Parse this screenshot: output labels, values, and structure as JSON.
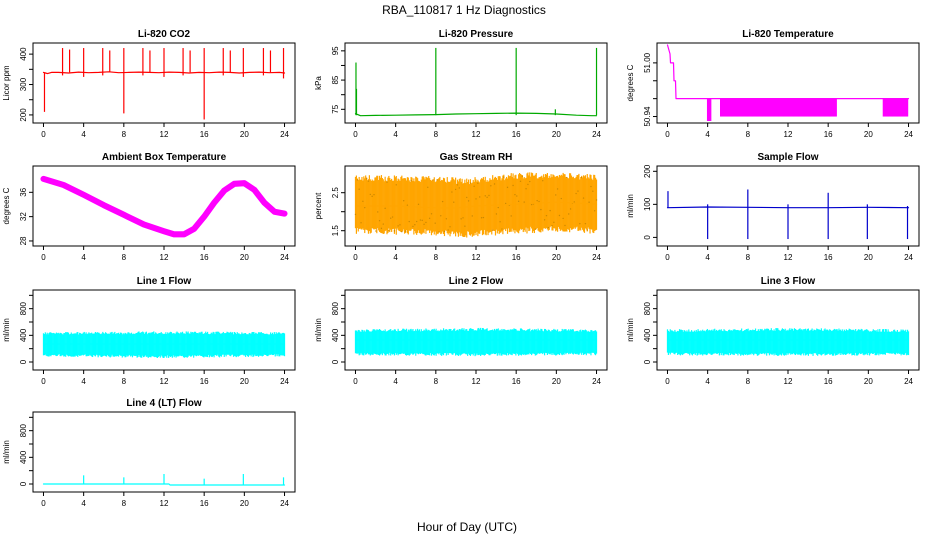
{
  "page": {
    "title": "RBA_110817  1 Hz Diagnostics",
    "xlabel": "Hour of Day (UTC)"
  },
  "chart_data": [
    {
      "id": "co2",
      "type": "line",
      "title": "Li-820 CO2",
      "ylabel": "Licor ppm",
      "color": "#ff0000",
      "xlim": [
        0,
        24
      ],
      "ylim": [
        180,
        430
      ],
      "xticks": [
        0,
        4,
        8,
        12,
        16,
        20,
        24
      ],
      "yticks": [
        200,
        250,
        300,
        350,
        400
      ],
      "ytick_labels": [
        "200",
        "",
        "300",
        "",
        "400"
      ],
      "series": [
        {
          "name": "CO2",
          "x": [
            0,
            0.2,
            0.4,
            0.8,
            1.5,
            2.5,
            3.5,
            4.5,
            5.5,
            6.5,
            7.5,
            8.5,
            9.5,
            10.5,
            11.5,
            12.5,
            13.5,
            14.5,
            15.5,
            16.5,
            17.5,
            18.5,
            19.5,
            20.5,
            21.5,
            22.5,
            23.5,
            24
          ],
          "values": [
            340,
            338,
            336,
            340,
            340,
            338,
            341,
            339,
            340,
            342,
            339,
            340,
            341,
            340,
            339,
            341,
            340,
            338,
            340,
            339,
            341,
            340,
            338,
            340,
            341,
            339,
            340,
            338
          ]
        }
      ],
      "spikes": [
        {
          "x": 0.1,
          "min": 210,
          "max": 340
        },
        {
          "x": 1.9,
          "min": 330,
          "max": 420
        },
        {
          "x": 2.6,
          "min": 340,
          "max": 415
        },
        {
          "x": 4.0,
          "min": 325,
          "max": 420
        },
        {
          "x": 5.9,
          "min": 330,
          "max": 420
        },
        {
          "x": 6.6,
          "min": 340,
          "max": 412
        },
        {
          "x": 8.0,
          "min": 205,
          "max": 420
        },
        {
          "x": 9.9,
          "min": 330,
          "max": 420
        },
        {
          "x": 10.6,
          "min": 340,
          "max": 412
        },
        {
          "x": 12.0,
          "min": 325,
          "max": 420
        },
        {
          "x": 13.9,
          "min": 330,
          "max": 420
        },
        {
          "x": 14.6,
          "min": 340,
          "max": 412
        },
        {
          "x": 16.0,
          "min": 185,
          "max": 420
        },
        {
          "x": 17.9,
          "min": 330,
          "max": 420
        },
        {
          "x": 18.6,
          "min": 340,
          "max": 412
        },
        {
          "x": 19.9,
          "min": 325,
          "max": 420
        },
        {
          "x": 21.9,
          "min": 330,
          "max": 420
        },
        {
          "x": 22.6,
          "min": 340,
          "max": 412
        },
        {
          "x": 23.9,
          "min": 320,
          "max": 420
        }
      ]
    },
    {
      "id": "pressure",
      "type": "line",
      "title": "Li-820 Pressure",
      "ylabel": "kPa",
      "color": "#00aa00",
      "xlim": [
        0,
        24
      ],
      "ylim": [
        71,
        97
      ],
      "xticks": [
        0,
        4,
        8,
        12,
        16,
        20,
        24
      ],
      "yticks": [
        75,
        80,
        85,
        90,
        95
      ],
      "ytick_labels": [
        "75",
        "",
        "85",
        "",
        "95"
      ],
      "series": [
        {
          "name": "Pressure",
          "x": [
            0,
            0.5,
            2,
            4,
            6,
            8,
            10,
            12,
            14,
            16,
            18,
            20,
            22,
            23.5,
            24
          ],
          "values": [
            73.5,
            72.8,
            72.9,
            73.0,
            73.1,
            73.2,
            73.4,
            73.5,
            73.6,
            73.7,
            73.6,
            73.4,
            73.0,
            72.8,
            72.8
          ]
        }
      ],
      "spikes": [
        {
          "x": 0.05,
          "min": 73,
          "max": 91
        },
        {
          "x": 0.1,
          "min": 73,
          "max": 82
        },
        {
          "x": 8.0,
          "min": 73,
          "max": 96
        },
        {
          "x": 16.0,
          "min": 73,
          "max": 96
        },
        {
          "x": 19.9,
          "min": 73,
          "max": 75
        },
        {
          "x": 24.0,
          "min": 73,
          "max": 96
        }
      ]
    },
    {
      "id": "temperature",
      "type": "line",
      "title": "Li-820 Temperature",
      "ylabel": "degrees C",
      "color": "#ff00ff",
      "xlim": [
        0,
        24
      ],
      "ylim": [
        50.935,
        51.02
      ],
      "xticks": [
        0,
        4,
        8,
        12,
        16,
        20,
        24
      ],
      "yticks": [
        50.94,
        50.96,
        50.98,
        51.0
      ],
      "ytick_labels": [
        "50.94",
        "",
        "",
        "51.00"
      ],
      "series": [
        {
          "name": "Temperature",
          "x": [
            0,
            0.25,
            0.3,
            0.6,
            0.65,
            0.8,
            0.85,
            24
          ],
          "values": [
            51.02,
            51.01,
            51.0,
            51.0,
            50.98,
            50.98,
            50.96,
            50.96
          ]
        }
      ],
      "bands": [
        {
          "x0": 4.0,
          "x1": 4.3,
          "min": 50.935,
          "max": 50.96
        },
        {
          "x0": 5.3,
          "x1": 16.8,
          "min": 50.94,
          "max": 50.96
        },
        {
          "x0": 21.5,
          "x1": 23.9,
          "min": 50.94,
          "max": 50.96
        }
      ]
    },
    {
      "id": "ambient",
      "type": "line",
      "title": "Ambient Box Temperature",
      "ylabel": "degrees C",
      "color": "#ff00ff",
      "band": 1.0,
      "xlim": [
        0,
        24
      ],
      "ylim": [
        27.5,
        40
      ],
      "xticks": [
        0,
        4,
        8,
        12,
        16,
        20,
        24
      ],
      "yticks": [
        28,
        32,
        36
      ],
      "ytick_labels": [
        "28",
        "32",
        "36"
      ],
      "series": [
        {
          "name": "Ambient",
          "x": [
            0,
            2,
            4,
            6,
            8,
            10,
            12,
            13,
            14,
            15,
            16,
            17,
            18,
            19,
            20,
            21,
            22,
            23,
            24
          ],
          "values": [
            38.2,
            37.2,
            35.6,
            33.9,
            32.3,
            30.7,
            29.6,
            29.1,
            29.1,
            30.0,
            32.0,
            34.3,
            36.3,
            37.4,
            37.5,
            36.4,
            34.3,
            32.8,
            32.5
          ]
        }
      ]
    },
    {
      "id": "rh",
      "type": "line",
      "title": "Gas Stream RH",
      "ylabel": "percent",
      "color": "#ffa500",
      "band_color": "#cc8800",
      "xlim": [
        0,
        24
      ],
      "ylim": [
        1.15,
        3.15
      ],
      "xticks": [
        0,
        4,
        8,
        12,
        16,
        20,
        24
      ],
      "yticks": [
        1.5,
        2.0,
        2.5
      ],
      "ytick_labels": [
        "1.5",
        "",
        "2.5"
      ],
      "series": [
        {
          "name": "RH",
          "x": [
            0,
            4,
            8,
            10,
            12,
            16,
            20,
            24
          ],
          "values": [
            2.15,
            2.15,
            2.1,
            2.1,
            2.15,
            2.2,
            2.25,
            2.2
          ]
        }
      ],
      "envelope": [
        {
          "x": 0,
          "min": 1.5,
          "max": 2.9
        },
        {
          "x": 8,
          "min": 1.45,
          "max": 2.85
        },
        {
          "x": 11,
          "min": 1.4,
          "max": 2.8
        },
        {
          "x": 16,
          "min": 1.5,
          "max": 2.95
        },
        {
          "x": 20,
          "min": 1.55,
          "max": 2.95
        },
        {
          "x": 24,
          "min": 1.5,
          "max": 2.9
        }
      ]
    },
    {
      "id": "sample",
      "type": "line",
      "title": "Sample Flow",
      "ylabel": "ml/min",
      "color": "#0000cc",
      "xlim": [
        0,
        24
      ],
      "ylim": [
        -20,
        210
      ],
      "xticks": [
        0,
        4,
        8,
        12,
        16,
        20,
        24
      ],
      "yticks": [
        0,
        100,
        200
      ],
      "ytick_labels": [
        "0",
        "100",
        "200"
      ],
      "series": [
        {
          "name": "Sample",
          "x": [
            0,
            4,
            8,
            12,
            16,
            20,
            24
          ],
          "values": [
            90,
            92,
            91,
            90,
            90,
            91,
            90
          ]
        }
      ],
      "spikes": [
        {
          "x": 0.05,
          "min": 90,
          "max": 140
        },
        {
          "x": 4.0,
          "min": -5,
          "max": 100
        },
        {
          "x": 8.0,
          "min": -5,
          "max": 145
        },
        {
          "x": 12.0,
          "min": -5,
          "max": 100
        },
        {
          "x": 16.0,
          "min": -5,
          "max": 135
        },
        {
          "x": 19.9,
          "min": -5,
          "max": 100
        },
        {
          "x": 23.9,
          "min": -5,
          "max": 95
        }
      ]
    },
    {
      "id": "line1",
      "type": "line",
      "title": "Line 1 Flow",
      "ylabel": "ml/min",
      "color": "#00ffff",
      "xlim": [
        0,
        24
      ],
      "ylim": [
        -90,
        1050
      ],
      "xticks": [
        0,
        4,
        8,
        12,
        16,
        20,
        24
      ],
      "yticks": [
        0,
        200,
        400,
        600,
        800,
        1000
      ],
      "ytick_labels": [
        "0",
        "",
        "400",
        "",
        "800",
        ""
      ],
      "series": [
        {
          "name": "Line 1",
          "x": [
            0,
            24
          ],
          "values": [
            270,
            270
          ]
        }
      ],
      "envelope": [
        {
          "x": 0,
          "min": 100,
          "max": 430
        },
        {
          "x": 12,
          "min": 80,
          "max": 440
        },
        {
          "x": 24,
          "min": 100,
          "max": 430
        }
      ]
    },
    {
      "id": "line2",
      "type": "line",
      "title": "Line 2 Flow",
      "ylabel": "ml/min",
      "color": "#00ffff",
      "xlim": [
        0,
        24
      ],
      "ylim": [
        -90,
        1050
      ],
      "xticks": [
        0,
        4,
        8,
        12,
        16,
        20,
        24
      ],
      "yticks": [
        0,
        200,
        400,
        600,
        800,
        1000
      ],
      "ytick_labels": [
        "0",
        "",
        "400",
        "",
        "800",
        ""
      ],
      "series": [
        {
          "name": "Line 2",
          "x": [
            0,
            24
          ],
          "values": [
            330,
            330
          ]
        }
      ],
      "envelope": [
        {
          "x": 0,
          "min": 120,
          "max": 470
        },
        {
          "x": 12,
          "min": 110,
          "max": 490
        },
        {
          "x": 24,
          "min": 120,
          "max": 470
        }
      ]
    },
    {
      "id": "line3",
      "type": "line",
      "title": "Line 3 Flow",
      "ylabel": "ml/min",
      "color": "#00ffff",
      "xlim": [
        0,
        24
      ],
      "ylim": [
        -90,
        1050
      ],
      "xticks": [
        0,
        4,
        8,
        12,
        16,
        20,
        24
      ],
      "yticks": [
        0,
        200,
        400,
        600,
        800,
        1000
      ],
      "ytick_labels": [
        "0",
        "",
        "400",
        "",
        "800",
        ""
      ],
      "series": [
        {
          "name": "Line 3",
          "x": [
            0,
            24
          ],
          "values": [
            330,
            330
          ]
        }
      ],
      "envelope": [
        {
          "x": 0,
          "min": 120,
          "max": 470
        },
        {
          "x": 12,
          "min": 110,
          "max": 490
        },
        {
          "x": 24,
          "min": 120,
          "max": 470
        }
      ]
    },
    {
      "id": "line4",
      "type": "line",
      "title": "Line 4 (LT) Flow",
      "ylabel": "ml/min",
      "color": "#00ffff",
      "xlim": [
        0,
        24
      ],
      "ylim": [
        -90,
        1050
      ],
      "xticks": [
        0,
        4,
        8,
        12,
        16,
        20,
        24
      ],
      "yticks": [
        0,
        200,
        400,
        600,
        800,
        1000
      ],
      "ytick_labels": [
        "0",
        "",
        "400",
        "",
        "800",
        ""
      ],
      "series": [
        {
          "name": "Line 4",
          "x": [
            0,
            12.5,
            12.6,
            24
          ],
          "values": [
            0,
            0,
            -15,
            -15
          ]
        }
      ],
      "spikes": [
        {
          "x": 4.0,
          "min": 0,
          "max": 130
        },
        {
          "x": 8.0,
          "min": 0,
          "max": 100
        },
        {
          "x": 12.0,
          "min": 0,
          "max": 150
        },
        {
          "x": 16.0,
          "min": -20,
          "max": 80
        },
        {
          "x": 19.9,
          "min": -20,
          "max": 150
        },
        {
          "x": 23.9,
          "min": -20,
          "max": 100
        }
      ]
    }
  ]
}
